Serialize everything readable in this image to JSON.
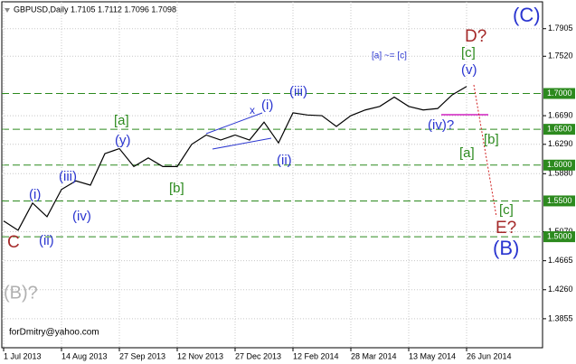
{
  "chart_data": {
    "type": "line",
    "title": "GBPUSD,Daily  1.7105 1.7112 1.7096 1.7098",
    "categories": [
      "1 Jul 2013",
      null,
      null,
      null,
      "14 Aug 2013",
      null,
      null,
      null,
      "27 Sep 2013",
      null,
      null,
      null,
      "12 Nov 2013",
      null,
      null,
      null,
      "27 Dec 2013",
      null,
      null,
      null,
      "12 Feb 2014",
      null,
      null,
      null,
      "28 Mar 2014",
      null,
      null,
      null,
      "13 May 2014",
      null,
      null,
      null,
      "26 Jun 2014"
    ],
    "series": [
      {
        "name": "GBPUSD",
        "color": "#000000",
        "values": [
          1.522,
          1.509,
          1.547,
          1.528,
          1.566,
          1.578,
          1.572,
          1.616,
          1.623,
          1.598,
          1.61,
          1.598,
          1.598,
          1.629,
          1.642,
          1.635,
          1.642,
          1.635,
          1.66,
          1.631,
          1.673,
          1.67,
          1.669,
          1.654,
          1.669,
          1.677,
          1.682,
          1.695,
          1.682,
          1.677,
          1.679,
          1.698,
          1.7098
        ]
      }
    ],
    "ylim": [
      1.345,
      1.828
    ],
    "yticks": [
      {
        "value": 1.7905,
        "label": "1.7905"
      },
      {
        "value": 1.752,
        "label": "1.7520"
      },
      {
        "value": 1.669,
        "label": "1.6690"
      },
      {
        "value": 1.629,
        "label": "1.6290"
      },
      {
        "value": 1.588,
        "label": "1.5880"
      },
      {
        "value": 1.507,
        "label": "1.5070"
      },
      {
        "value": 1.4665,
        "label": "1.4665"
      },
      {
        "value": 1.426,
        "label": "1.4260"
      },
      {
        "value": 1.3855,
        "label": "1.3855"
      }
    ],
    "levels": [
      {
        "value": 1.7,
        "label": "1.7000"
      },
      {
        "value": 1.65,
        "label": "1.6500"
      },
      {
        "value": 1.6,
        "label": "1.6000"
      },
      {
        "value": 1.55,
        "label": "1.5500"
      },
      {
        "value": 1.5,
        "label": "1.5000"
      }
    ],
    "level_color": "#2c8a1e",
    "grid": true,
    "annotations": [
      "(C)",
      "D?",
      "[c]",
      "(v)",
      "[a] ~= [c]",
      "(iii)",
      "(i)",
      "x",
      "(iv)?",
      "[b]",
      "[a]",
      "[a]",
      "(y)",
      "(ii)",
      "[b]",
      "(iii)",
      "(i)",
      "(iv)",
      "(ii)",
      "[c]",
      "E?",
      "(B)",
      "C",
      "(B)?",
      "forDmitry@yahoo.com"
    ]
  }
}
